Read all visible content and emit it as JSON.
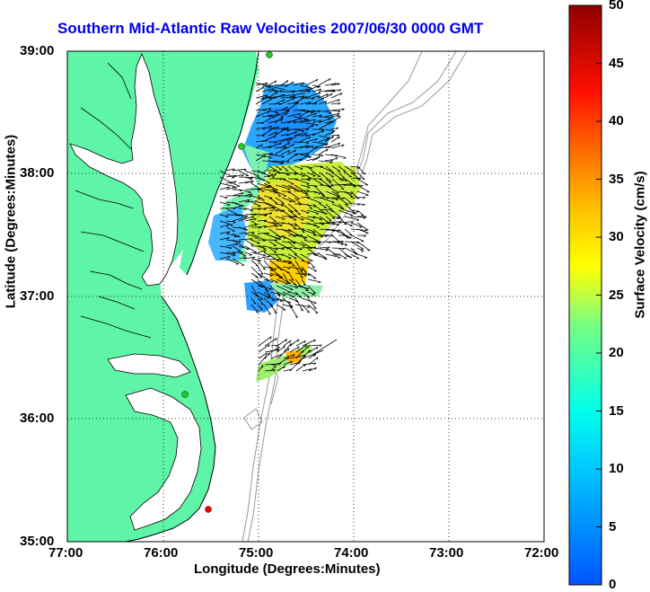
{
  "map": {
    "title": "Southern Mid-Atlantic Raw Velocities 2007/06/30 0000 GMT",
    "xlabel": "Longitude (Degrees:Minutes)",
    "ylabel": "Latitude (Degrees:Minutes)",
    "x_ticks": [
      "77:00",
      "76:00",
      "75:00",
      "74:00",
      "73:00",
      "72:00"
    ],
    "y_ticks": [
      "39:00",
      "38:00",
      "37:00",
      "36:00",
      "35:00"
    ],
    "colors": {
      "land": "#5ff5a8",
      "water": "#ffffff",
      "title": "#0000ee",
      "contour": "#999999"
    }
  },
  "colorbar": {
    "label": "Surface Velocity (cm/s)",
    "ticks": [
      "50",
      "45",
      "40",
      "35",
      "30",
      "25",
      "20",
      "15",
      "10",
      "5",
      "0"
    ],
    "range": [
      0,
      50
    ]
  },
  "stations": [
    {
      "color": "#22cc22"
    },
    {
      "color": "#22cc22"
    },
    {
      "color": "#22cc22"
    },
    {
      "color": "#ee0000"
    }
  ]
}
